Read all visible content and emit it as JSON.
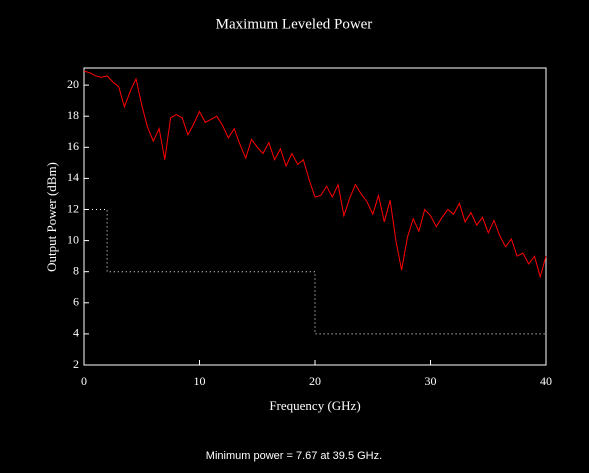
{
  "chart_data": {
    "type": "line",
    "title": "Maximum Leveled Power",
    "xlabel": "Frequency (GHz)",
    "ylabel": "Output Power (dBm)",
    "annotation": "Minimum power = 7.67 at 39.5 GHz.",
    "xlim": [
      0,
      40
    ],
    "xticks": [
      0,
      10,
      20,
      30,
      40
    ],
    "ylim": [
      2,
      21.1
    ],
    "yticks": [
      2,
      4,
      6,
      8,
      10,
      12,
      14,
      16,
      18,
      20
    ],
    "series": [
      {
        "color": "#ff0000",
        "style": "solid",
        "x": [
          0,
          0.5,
          1,
          1.5,
          2,
          2.5,
          3,
          3.5,
          4,
          4.5,
          5,
          5.5,
          6,
          6.5,
          7,
          7.5,
          8,
          8.5,
          9,
          9.5,
          10,
          10.5,
          11,
          11.5,
          12,
          12.5,
          13,
          13.5,
          14,
          14.5,
          15,
          15.5,
          16,
          16.5,
          17,
          17.5,
          18,
          18.5,
          19,
          19.5,
          20,
          20.5,
          21,
          21.5,
          22,
          22.5,
          23,
          23.5,
          24,
          24.5,
          25,
          25.5,
          26,
          26.5,
          27,
          27.5,
          28,
          28.5,
          29,
          29.5,
          30,
          30.5,
          31,
          31.5,
          32,
          32.5,
          33,
          33.5,
          34,
          34.5,
          35,
          35.5,
          36,
          36.5,
          37,
          37.5,
          38,
          38.5,
          39,
          39.5,
          40
        ],
        "values": [
          20.9,
          20.8,
          20.6,
          20.5,
          20.6,
          20.2,
          19.9,
          18.6,
          19.6,
          20.4,
          18.7,
          17.3,
          16.4,
          17.2,
          15.2,
          17.9,
          18.1,
          17.9,
          16.8,
          17.5,
          18.3,
          17.6,
          17.8,
          18.0,
          17.4,
          16.6,
          17.2,
          16.2,
          15.3,
          16.5,
          16.0,
          15.6,
          16.3,
          15.2,
          15.9,
          14.8,
          15.6,
          14.9,
          15.2,
          13.9,
          12.8,
          12.9,
          13.5,
          12.8,
          13.6,
          11.6,
          12.7,
          13.6,
          13.0,
          12.5,
          11.7,
          12.9,
          11.2,
          12.6,
          10.0,
          8.1,
          10.2,
          11.4,
          10.6,
          12.0,
          11.6,
          10.9,
          11.5,
          12.0,
          11.7,
          12.4,
          11.2,
          11.8,
          11.0,
          11.5,
          10.5,
          11.3,
          10.3,
          9.6,
          10.1,
          9.0,
          9.2,
          8.5,
          9.0,
          7.67,
          9.0
        ]
      },
      {
        "color": "#ffffff",
        "style": "dotted",
        "x": [
          0,
          2,
          2,
          20,
          20,
          40
        ],
        "values": [
          12,
          12,
          8,
          8,
          4,
          4
        ]
      }
    ]
  }
}
